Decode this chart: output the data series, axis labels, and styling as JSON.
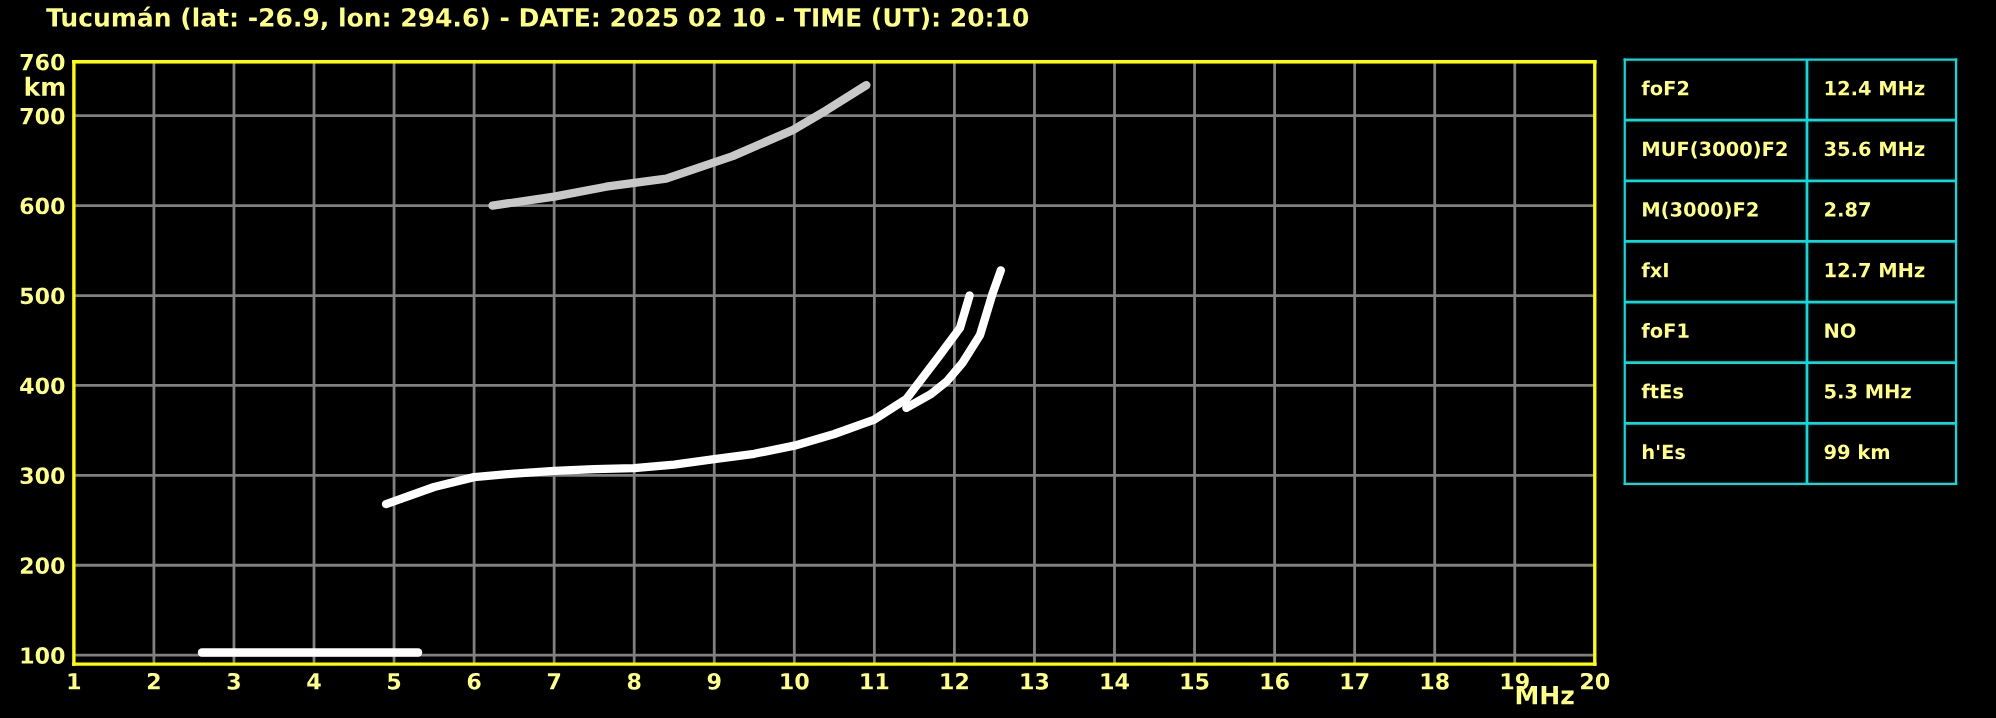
{
  "chart_data": [
    {
      "type": "line",
      "title": "Tucumán (lat: -26.9, lon: 294.6) - DATE: 2025 02 10 - TIME (UT): 20:10",
      "xlabel": "MHz",
      "ylabel": "km",
      "xlim": [
        1,
        20
      ],
      "xticks": [
        1,
        2,
        3,
        4,
        5,
        6,
        7,
        8,
        9,
        10,
        11,
        12,
        13,
        14,
        15,
        16,
        17,
        18,
        19,
        20
      ],
      "ylim": [
        90,
        760
      ],
      "yticks": [
        100,
        200,
        300,
        400,
        500,
        600,
        700,
        760
      ],
      "grid": true,
      "legend": false,
      "marker": "none",
      "line_style": "solid",
      "series": [
        {
          "color": "#ffffff",
          "x": [
            2.6,
            3.5,
            4.5,
            5.3
          ],
          "values": [
            103,
            103,
            103,
            103
          ]
        },
        {
          "color": "#ffffff",
          "x": [
            4.9,
            5.5,
            6.0,
            6.5,
            7.0,
            7.5,
            8.0,
            8.5,
            9.0,
            9.5,
            10.0,
            10.5,
            11.0,
            11.4,
            11.82,
            12.07,
            12.19
          ],
          "values": [
            268,
            287,
            298,
            302,
            305,
            307,
            308,
            312,
            318,
            324,
            333,
            346,
            362,
            385,
            434,
            464,
            500
          ]
        },
        {
          "color": "#ffffff",
          "x": [
            11.4,
            11.7,
            11.9,
            12.1,
            12.32,
            12.48,
            12.58
          ],
          "values": [
            375,
            390,
            404,
            425,
            456,
            503,
            528
          ]
        },
        {
          "color": "#c8c8c8",
          "x": [
            6.23,
            7.0,
            7.65,
            8.4,
            9.23,
            9.98,
            10.4,
            10.9
          ],
          "values": [
            600,
            610,
            621,
            630,
            655,
            684,
            706,
            734
          ]
        }
      ]
    },
    {
      "type": "other",
      "annotations": [
        "foF2",
        "12.4 MHz",
        "MUF(3000)F2",
        "35.6 MHz",
        "M(3000)F2",
        "2.87",
        "fxI",
        "12.7 MHz",
        "foF1",
        "NO",
        "ftEs",
        "5.3 MHz",
        "h'Es",
        "99 km"
      ]
    }
  ]
}
